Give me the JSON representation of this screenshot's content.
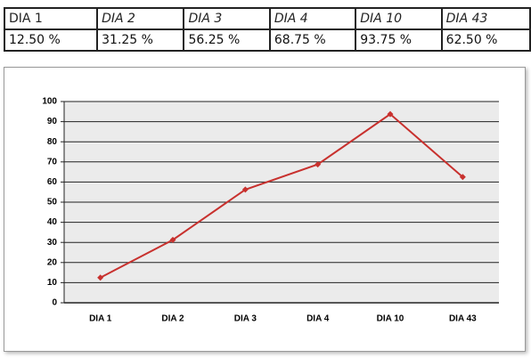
{
  "table": {
    "header": [
      "DIA 1",
      "DIA 2",
      "DIA 3",
      "DIA 4",
      "DIA 10",
      "DIA 43"
    ],
    "rows": [
      [
        "12.50 %",
        "31.25 %",
        "56.25 %",
        "68.75 %",
        "93.75 %",
        "62.50 %"
      ]
    ]
  },
  "chart_data": {
    "type": "line",
    "categories": [
      "DIA 1",
      "DIA 2",
      "DIA 3",
      "DIA 4",
      "DIA 10",
      "DIA 43"
    ],
    "values": [
      12.5,
      31.25,
      56.25,
      68.75,
      93.75,
      62.5
    ],
    "color": "#c8312e",
    "ylim": [
      0,
      100
    ],
    "yticks": [
      0,
      10,
      20,
      30,
      40,
      50,
      60,
      70,
      80,
      90,
      100
    ],
    "grid": true
  }
}
